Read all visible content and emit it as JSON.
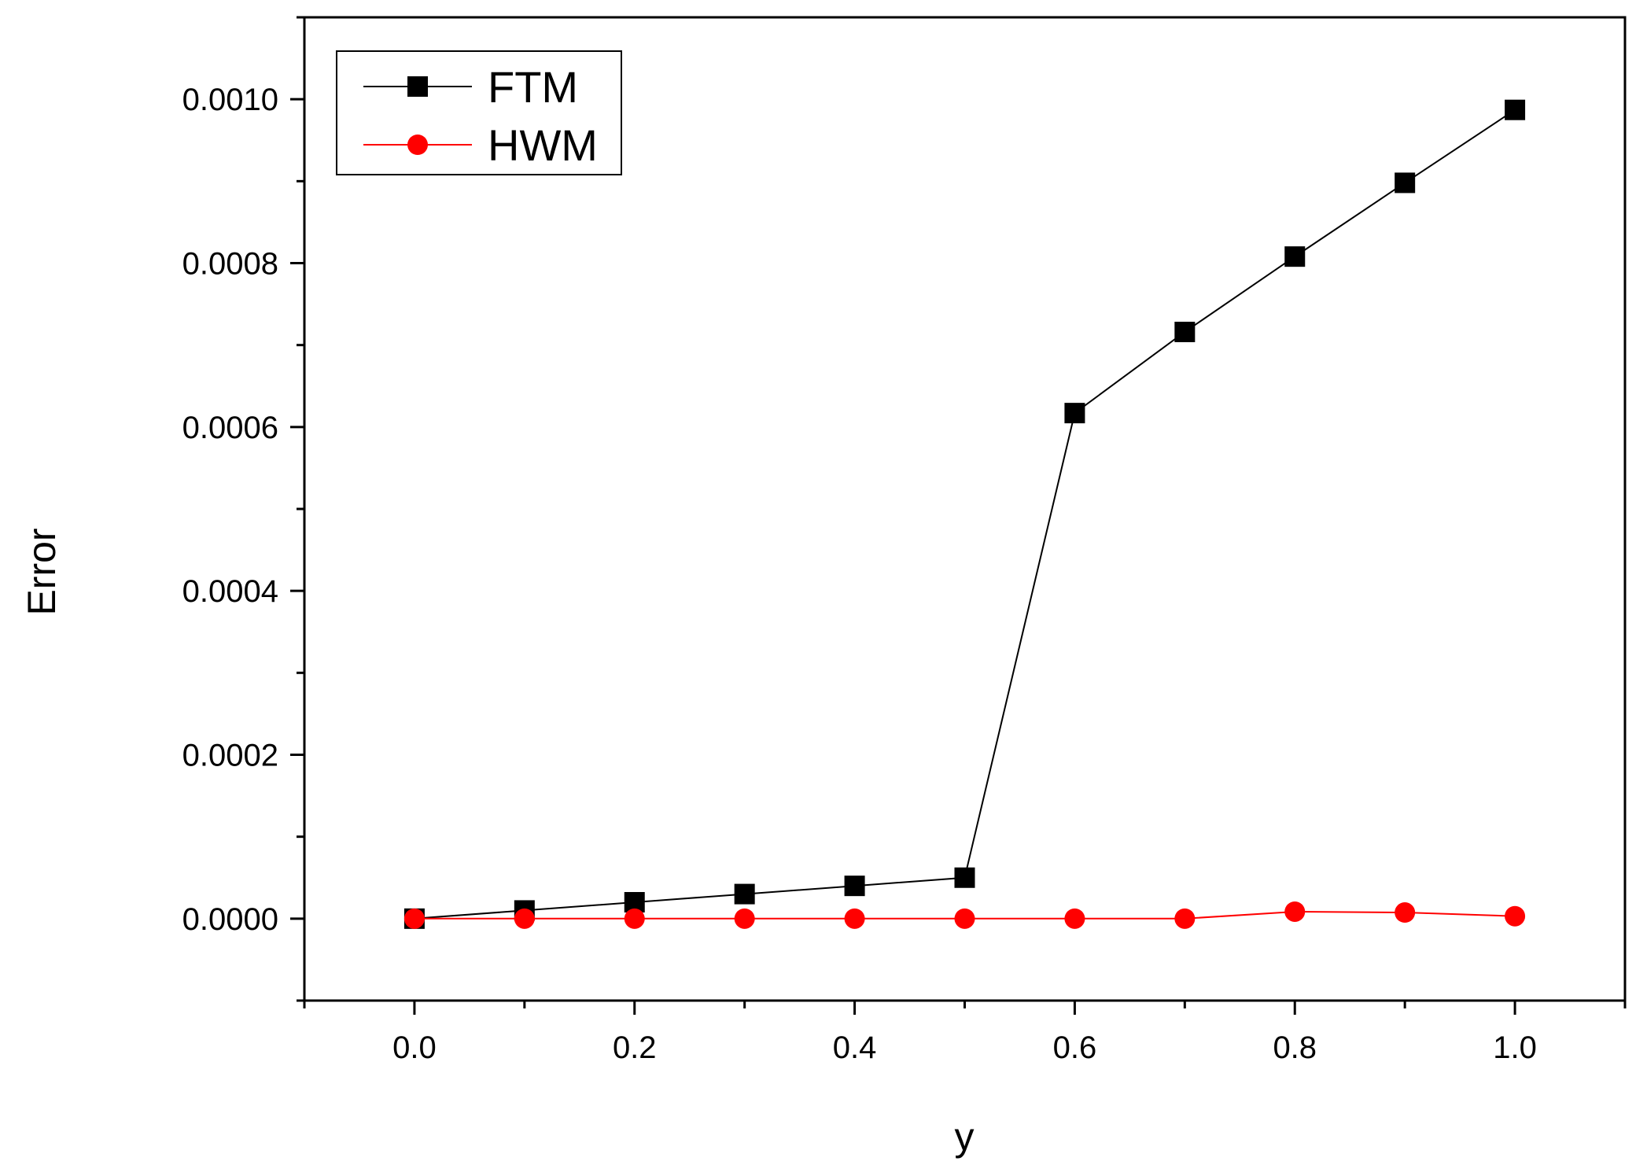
{
  "chart_data": {
    "type": "line",
    "xlabel": "y",
    "ylabel": "Error",
    "xlim": [
      -0.1,
      1.1
    ],
    "ylim": [
      -0.0001,
      0.0011
    ],
    "x_ticks": [
      0.0,
      0.2,
      0.4,
      0.6,
      0.8,
      1.0
    ],
    "x_tick_labels": [
      "0.0",
      "0.2",
      "0.4",
      "0.6",
      "0.8",
      "1.0"
    ],
    "y_ticks": [
      0.0,
      0.0002,
      0.0004,
      0.0006,
      0.0008,
      0.001
    ],
    "y_tick_labels": [
      "0.0000",
      "0.0002",
      "0.0004",
      "0.0006",
      "0.0008",
      "0.0010"
    ],
    "grid": false,
    "legend_position": "top-left",
    "series": [
      {
        "name": "FTM",
        "color": "#000000",
        "marker": "square",
        "x": [
          0.0,
          0.1,
          0.2,
          0.3,
          0.4,
          0.5,
          0.6,
          0.7,
          0.8,
          0.9,
          1.0
        ],
        "values": [
          0.0,
          1e-05,
          2e-05,
          3e-05,
          4e-05,
          5e-05,
          0.000617,
          0.000716,
          0.000808,
          0.000898,
          0.000987
        ]
      },
      {
        "name": "HWM",
        "color": "#ff0000",
        "marker": "circle",
        "x": [
          0.0,
          0.1,
          0.2,
          0.3,
          0.4,
          0.5,
          0.6,
          0.7,
          0.8,
          0.9,
          1.0
        ],
        "values": [
          0.0,
          0.0,
          0.0,
          0.0,
          0.0,
          0.0,
          0.0,
          0.0,
          8.5e-06,
          7.5e-06,
          3e-06
        ]
      }
    ]
  }
}
